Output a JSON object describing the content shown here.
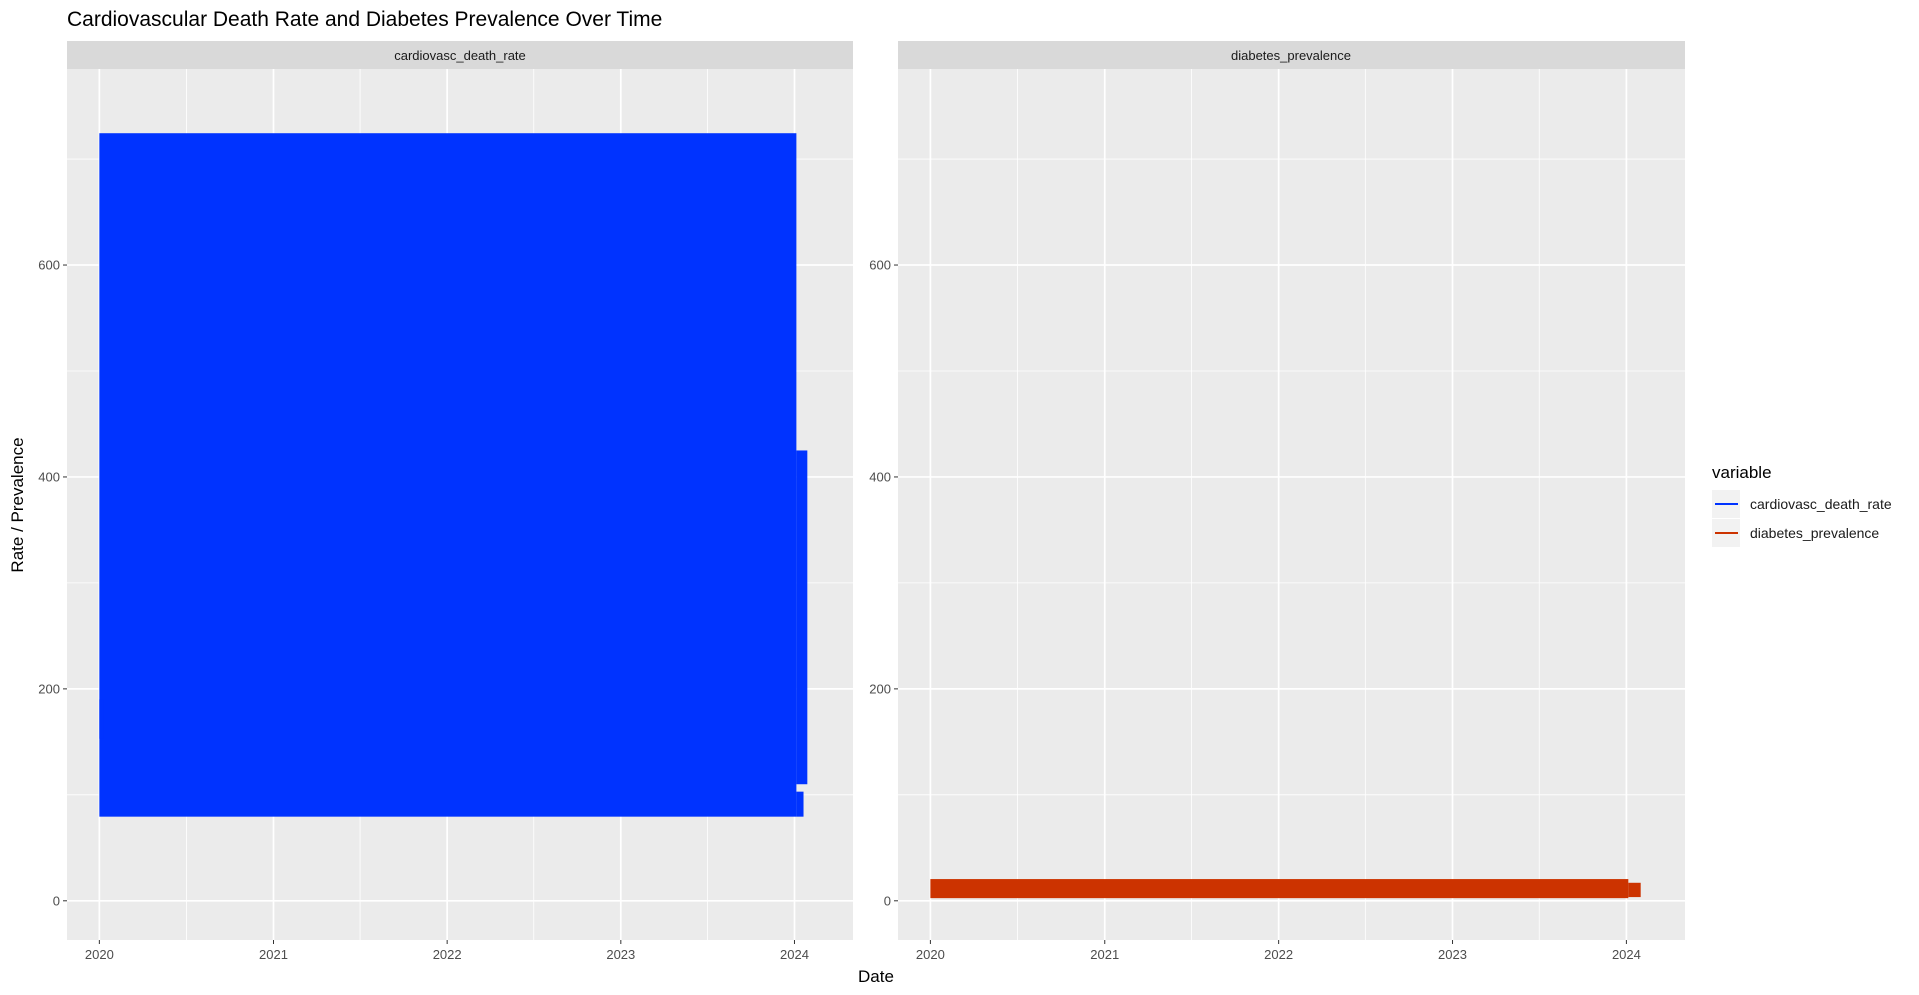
{
  "chart_data": {
    "type": "line",
    "title": "Cardiovascular Death Rate and Diabetes Prevalence Over Time",
    "xlabel": "Date",
    "ylabel": "Rate / Prevalence",
    "x_range": [
      "2019-10-25",
      "2024-05-03"
    ],
    "y_range": [
      -37,
      785
    ],
    "x_ticks": [
      "2020",
      "2021",
      "2022",
      "2023",
      "2024"
    ],
    "y_ticks": [
      0,
      200,
      400,
      600
    ],
    "grid": true,
    "legend": {
      "title": "variable",
      "position": "right",
      "entries": [
        {
          "label": "cardiovasc_death_rate",
          "color": "#0033ff"
        },
        {
          "label": "diabetes_prevalence",
          "color": "#cc3300"
        }
      ]
    },
    "facets": [
      {
        "strip": "cardiovasc_death_rate",
        "color": "#0033ff",
        "series": [
          {
            "name": "cardiovasc_death_rate",
            "note_visible": "dense overlapping lines spanning the full range",
            "bands": [
              {
                "x": [
                  "2020-01-01",
                  "2024-01-05"
                ],
                "y": [
                  79.4,
                  724.4
                ]
              },
              {
                "x": [
                  "2020-01-01",
                  "2020-01-10"
                ],
                "y": [
                  153,
                  190
                ]
              },
              {
                "x": [
                  "2024-01-05",
                  "2024-01-28"
                ],
                "y": [
                  110,
                  425
                ]
              },
              {
                "x": [
                  "2024-01-05",
                  "2024-01-20"
                ],
                "y": [
                  79.4,
                  103
                ]
              }
            ]
          }
        ]
      },
      {
        "strip": "diabetes_prevalence",
        "color": "#cc3300",
        "series": [
          {
            "name": "diabetes_prevalence",
            "bands": [
              {
                "x": [
                  "2020-01-01",
                  "2024-01-05"
                ],
                "y": [
                  2.5,
                  20.5
                ]
              },
              {
                "x": [
                  "2024-01-05",
                  "2024-01-31"
                ],
                "y": [
                  3.5,
                  17
                ]
              }
            ]
          }
        ]
      }
    ]
  }
}
